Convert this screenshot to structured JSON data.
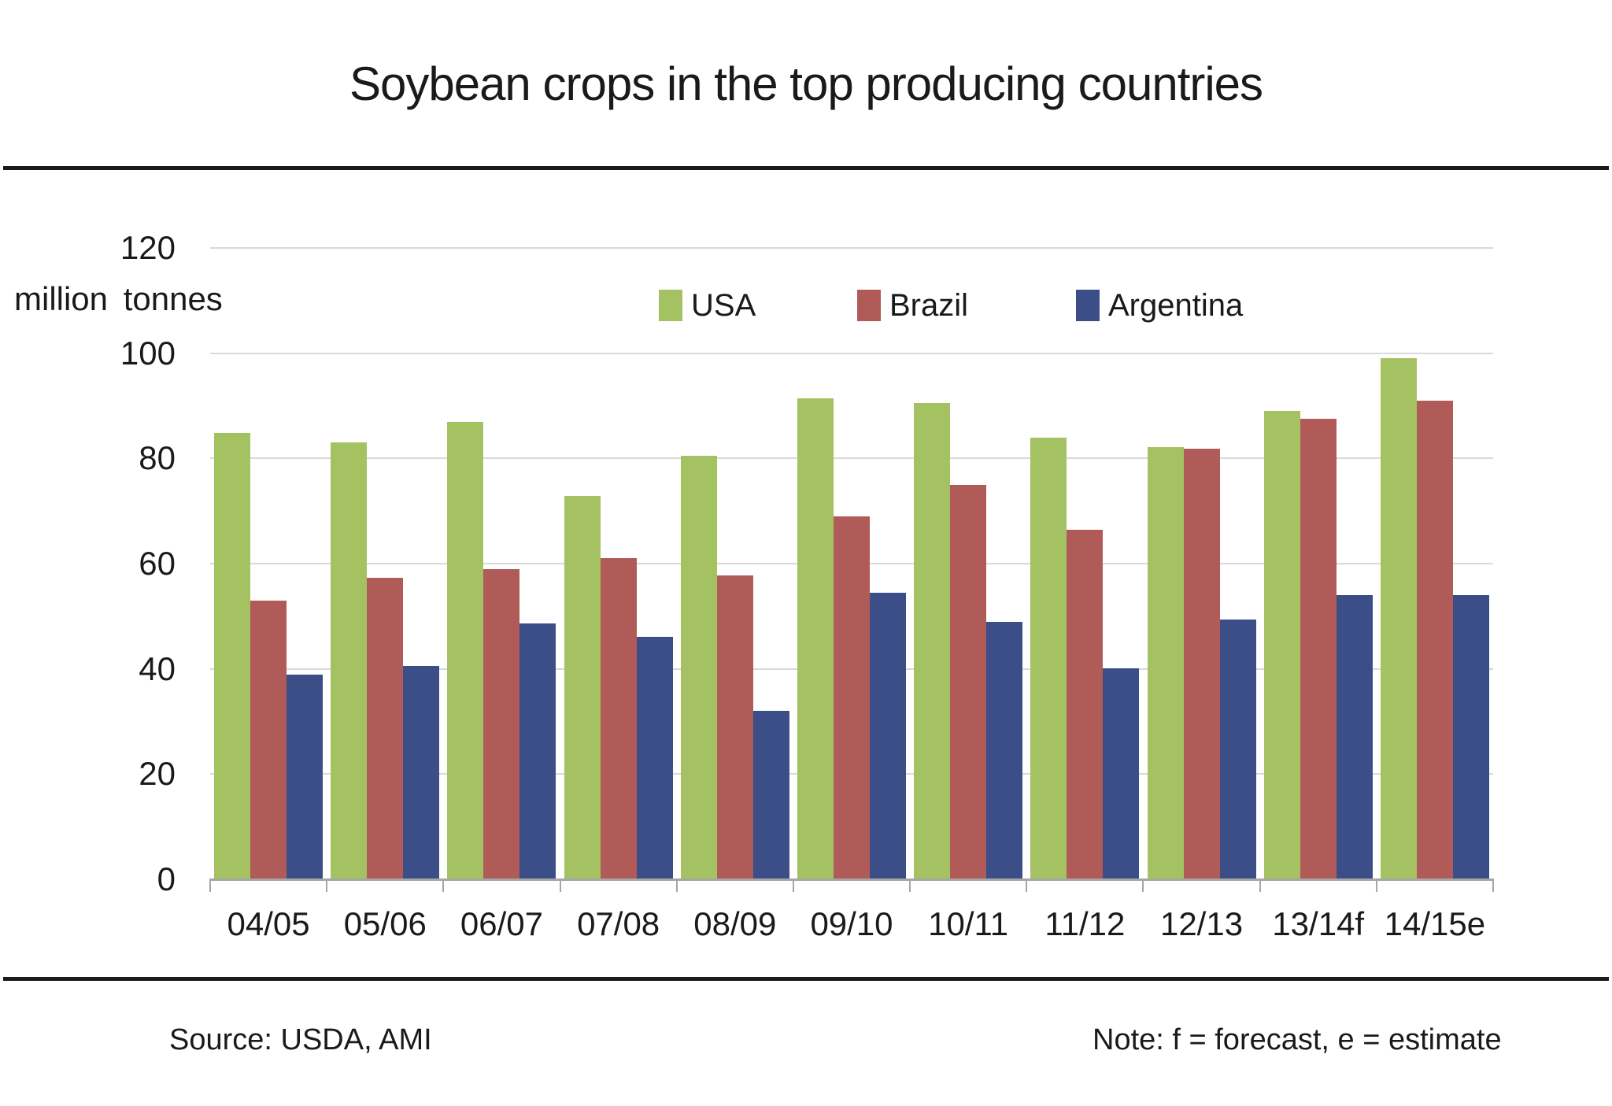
{
  "title": "Soybean crops in the top producing countries",
  "footer": {
    "source": "Source: USDA, AMI",
    "note": "Note: f = forecast, e = estimate"
  },
  "colors": {
    "usa": "#a5c263",
    "brazil": "#b05b58",
    "argentina": "#3b4e87",
    "gridline": "#d9d9d9",
    "axis_line": "#a6a6a6",
    "divider": "#1a1a1a",
    "text": "#1a1a1a"
  },
  "chart_data": {
    "type": "bar",
    "title": "Soybean crops in the top producing countries",
    "unit_label": "million tonnes",
    "xlabel": "",
    "ylabel": "million tonnes",
    "categories": [
      "04/05",
      "05/06",
      "06/07",
      "07/08",
      "08/09",
      "09/10",
      "10/11",
      "11/12",
      "12/13",
      "13/14f",
      "14/15e"
    ],
    "series": [
      {
        "name": "USA",
        "color": "#a5c263",
        "values": [
          84.8,
          83.1,
          87.0,
          72.9,
          80.5,
          91.4,
          90.5,
          84.0,
          82.2,
          89.0,
          99.0
        ]
      },
      {
        "name": "Brazil",
        "color": "#b05b58",
        "values": [
          53.0,
          57.3,
          58.9,
          61.0,
          57.8,
          69.0,
          75.0,
          66.5,
          81.8,
          87.5,
          91.0
        ]
      },
      {
        "name": "Argentina",
        "color": "#3b4e87",
        "values": [
          38.9,
          40.6,
          48.6,
          46.1,
          32.0,
          54.5,
          49.0,
          40.1,
          49.4,
          54.0,
          54.0
        ]
      }
    ],
    "y_axis": {
      "min": 0,
      "max": 120,
      "tick_step": 20,
      "ticks": [
        0,
        20,
        40,
        60,
        80,
        100,
        120
      ]
    },
    "grid": true,
    "legend_position": "top-center"
  }
}
